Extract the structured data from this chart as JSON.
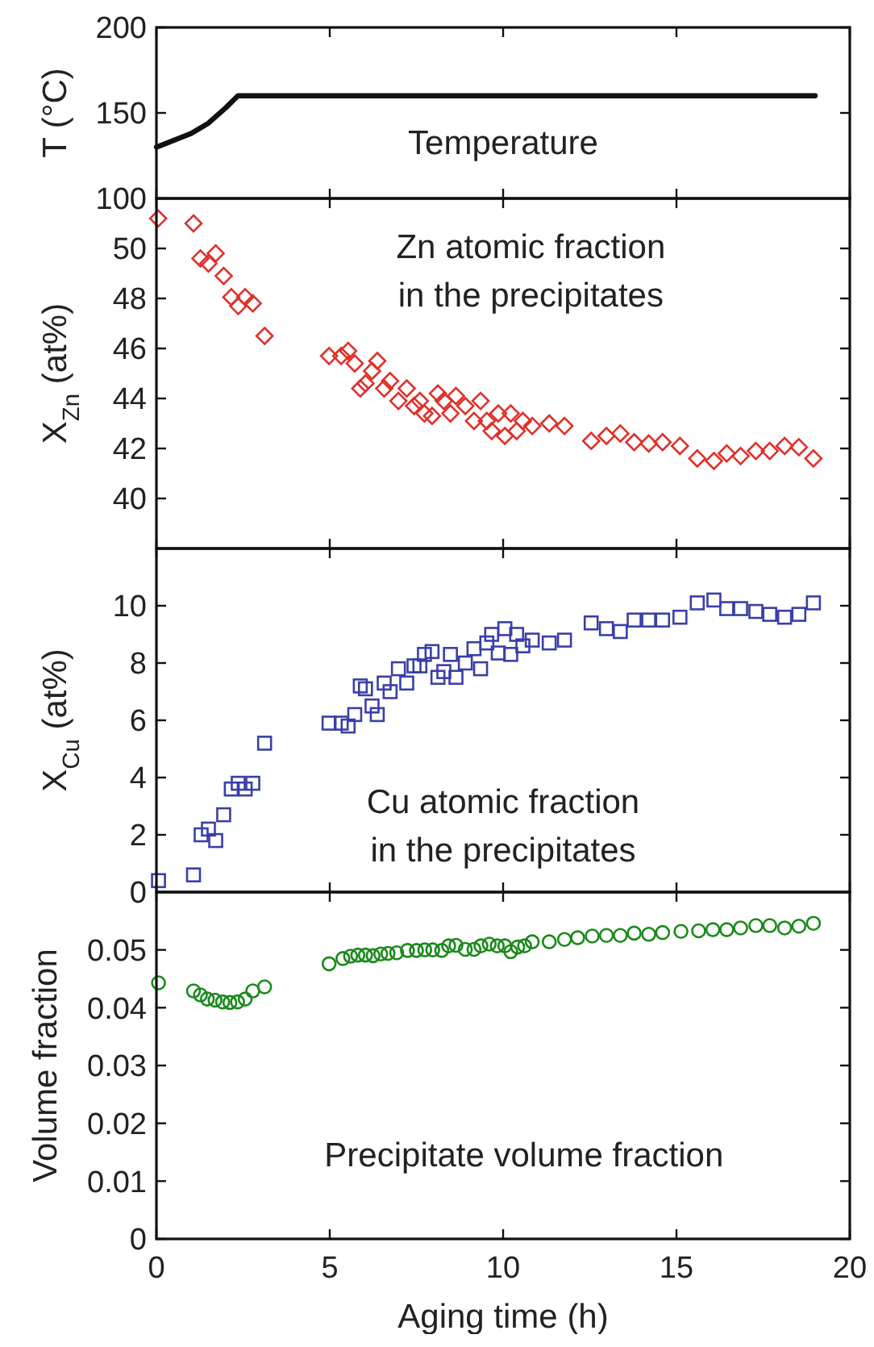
{
  "chart_data": [
    {
      "type": "line",
      "ylabel": "T (°C)",
      "annotations": [
        "Temperature"
      ],
      "xlim": [
        0,
        20
      ],
      "xticks": [
        0,
        5,
        10,
        15,
        20
      ],
      "ylim": [
        100,
        200
      ],
      "yticks": [
        100,
        150,
        200
      ],
      "tick_labels": "y",
      "grid": false,
      "marker": "none",
      "line_style": "solid",
      "series": [
        {
          "color": "#111111",
          "x": [
            0,
            0.5,
            1,
            1.5,
            2,
            2.35,
            19
          ],
          "values": [
            130,
            134,
            138,
            144,
            153,
            160,
            160
          ]
        }
      ]
    },
    {
      "type": "scatter",
      "ylabel": "X$_{Zn}$ (at%)",
      "annotations": [
        "Zn atomic fraction in the precipitates"
      ],
      "xlim": [
        0,
        20
      ],
      "xticks": [
        0,
        5,
        10,
        15,
        20
      ],
      "ylim": [
        38,
        52
      ],
      "yticks": [
        40,
        42,
        44,
        46,
        48,
        50
      ],
      "tick_labels": "y",
      "grid": false,
      "marker": "diamond",
      "series": [
        {
          "color": "#e0302a",
          "x": [
            0.05,
            1.07,
            1.27,
            1.5,
            1.71,
            1.94,
            2.16,
            2.36,
            2.56,
            2.78,
            3.12,
            4.98,
            5.33,
            5.53,
            5.72,
            5.88,
            6.03,
            6.22,
            6.37,
            6.57,
            6.74,
            6.98,
            7.22,
            7.43,
            7.6,
            7.73,
            7.95,
            8.12,
            8.29,
            8.48,
            8.64,
            8.91,
            9.16,
            9.35,
            9.53,
            9.67,
            9.86,
            10.05,
            10.22,
            10.39,
            10.57,
            10.84,
            11.33,
            11.77,
            12.54,
            12.98,
            13.38,
            13.78,
            14.2,
            14.6,
            15.1,
            15.6,
            16.08,
            16.45,
            16.85,
            17.29,
            17.69,
            18.12,
            18.53,
            18.95
          ],
          "values": [
            51.2,
            51.0,
            49.6,
            49.4,
            49.8,
            48.9,
            48.05,
            47.7,
            48.05,
            47.8,
            46.5,
            45.7,
            45.7,
            45.9,
            45.4,
            44.4,
            44.6,
            45.1,
            45.5,
            44.4,
            44.7,
            43.9,
            44.4,
            43.7,
            43.9,
            43.4,
            43.3,
            44.2,
            43.9,
            43.4,
            44.1,
            43.7,
            43.1,
            43.9,
            43.1,
            42.7,
            43.4,
            42.5,
            43.4,
            42.7,
            43.1,
            42.9,
            43.0,
            42.9,
            42.3,
            42.5,
            42.6,
            42.25,
            42.2,
            42.25,
            42.1,
            41.6,
            41.5,
            41.8,
            41.7,
            41.9,
            41.9,
            42.1,
            42.05,
            41.6
          ]
        }
      ]
    },
    {
      "type": "scatter",
      "ylabel": "X$_{Cu}$ (at%)",
      "annotations": [
        "Cu atomic fraction in the precipitates"
      ],
      "xlim": [
        0,
        20
      ],
      "xticks": [
        0,
        5,
        10,
        15,
        20
      ],
      "ylim": [
        0,
        12
      ],
      "yticks": [
        0,
        2,
        4,
        6,
        8,
        10
      ],
      "tick_labels": "y",
      "grid": false,
      "marker": "square",
      "series": [
        {
          "color": "#3a3fa8",
          "x": [
            0.06,
            1.07,
            1.29,
            1.5,
            1.71,
            1.94,
            2.16,
            2.36,
            2.56,
            2.78,
            3.12,
            4.98,
            5.33,
            5.53,
            5.72,
            5.88,
            6.03,
            6.22,
            6.37,
            6.57,
            6.74,
            6.98,
            7.22,
            7.43,
            7.6,
            7.73,
            7.95,
            8.12,
            8.29,
            8.48,
            8.64,
            8.91,
            9.16,
            9.35,
            9.53,
            9.67,
            9.86,
            10.05,
            10.22,
            10.39,
            10.57,
            10.84,
            11.33,
            11.77,
            12.54,
            12.98,
            13.38,
            13.78,
            14.2,
            14.6,
            15.1,
            15.6,
            16.08,
            16.45,
            16.85,
            17.29,
            17.69,
            18.12,
            18.53,
            18.95
          ],
          "values": [
            0.4,
            0.6,
            2.0,
            2.2,
            1.8,
            2.7,
            3.6,
            3.8,
            3.6,
            3.8,
            5.2,
            5.9,
            5.9,
            5.8,
            6.2,
            7.2,
            7.1,
            6.5,
            6.2,
            7.3,
            7.0,
            7.8,
            7.3,
            7.9,
            7.9,
            8.3,
            8.4,
            7.5,
            7.7,
            8.3,
            7.5,
            8.0,
            8.5,
            7.8,
            8.7,
            9.0,
            8.35,
            9.2,
            8.3,
            9.0,
            8.6,
            8.8,
            8.7,
            8.8,
            9.4,
            9.2,
            9.1,
            9.5,
            9.5,
            9.5,
            9.6,
            10.1,
            10.2,
            9.9,
            9.9,
            9.8,
            9.7,
            9.6,
            9.7,
            10.1
          ]
        }
      ]
    },
    {
      "type": "scatter",
      "xlabel": "Aging time (h)",
      "ylabel": "Volume fraction",
      "annotations": [
        "Precipitate volume fraction"
      ],
      "xlim": [
        0,
        20
      ],
      "xticks": [
        0,
        5,
        10,
        15,
        20
      ],
      "ylim": [
        0,
        0.06
      ],
      "yticks": [
        0,
        0.01,
        0.02,
        0.03,
        0.04,
        0.05
      ],
      "grid": false,
      "marker": "circle",
      "series": [
        {
          "color": "#1a8a1a",
          "x": [
            0.06,
            1.07,
            1.27,
            1.47,
            1.69,
            1.91,
            2.12,
            2.34,
            2.56,
            2.78,
            3.12,
            4.98,
            5.38,
            5.6,
            5.81,
            6.03,
            6.25,
            6.47,
            6.68,
            6.93,
            7.24,
            7.5,
            7.74,
            7.97,
            8.23,
            8.43,
            8.64,
            8.91,
            9.16,
            9.36,
            9.6,
            9.83,
            10.05,
            10.22,
            10.42,
            10.62,
            10.84,
            11.33,
            11.77,
            12.15,
            12.57,
            12.98,
            13.38,
            13.78,
            14.2,
            14.6,
            15.13,
            15.64,
            16.05,
            16.45,
            16.85,
            17.29,
            17.69,
            18.12,
            18.53,
            18.95
          ],
          "values": [
            0.0443,
            0.0429,
            0.0422,
            0.0415,
            0.0413,
            0.041,
            0.0409,
            0.041,
            0.0415,
            0.0429,
            0.0436,
            0.0476,
            0.0485,
            0.0489,
            0.0491,
            0.0491,
            0.049,
            0.0493,
            0.0494,
            0.0495,
            0.0499,
            0.0499,
            0.05,
            0.05,
            0.0499,
            0.0507,
            0.0508,
            0.0501,
            0.0501,
            0.0507,
            0.051,
            0.0507,
            0.0507,
            0.0497,
            0.0505,
            0.0507,
            0.0514,
            0.0514,
            0.0518,
            0.0521,
            0.0524,
            0.0525,
            0.0525,
            0.0529,
            0.0527,
            0.053,
            0.0532,
            0.0533,
            0.0535,
            0.0535,
            0.0538,
            0.0542,
            0.0542,
            0.0538,
            0.0541,
            0.0546
          ]
        }
      ]
    }
  ]
}
